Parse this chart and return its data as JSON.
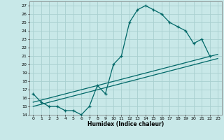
{
  "xlabel": "Humidex (Indice chaleur)",
  "bg_color": "#c8e8e8",
  "grid_color": "#a8d0d0",
  "line_color": "#006868",
  "xlim": [
    -0.5,
    23.5
  ],
  "ylim": [
    14,
    27.5
  ],
  "xticks": [
    0,
    1,
    2,
    3,
    4,
    5,
    6,
    7,
    8,
    9,
    10,
    11,
    12,
    13,
    14,
    15,
    16,
    17,
    18,
    19,
    20,
    21,
    22,
    23
  ],
  "yticks": [
    14,
    15,
    16,
    17,
    18,
    19,
    20,
    21,
    22,
    23,
    24,
    25,
    26,
    27
  ],
  "curve_x": [
    0,
    1,
    2,
    3,
    4,
    5,
    6,
    7,
    8,
    9,
    10,
    11,
    12,
    13,
    14,
    15,
    16,
    17,
    18,
    19,
    20,
    21,
    22
  ],
  "curve_y": [
    16.5,
    15.5,
    15.0,
    15.0,
    14.5,
    14.5,
    14.0,
    15.0,
    17.5,
    16.5,
    20.0,
    21.0,
    25.0,
    26.5,
    27.0,
    26.5,
    26.0,
    25.0,
    24.5,
    24.0,
    22.5,
    23.0,
    21.0
  ],
  "line2_x": [
    0,
    23
  ],
  "line2_y": [
    15.5,
    21.2
  ],
  "line3_x": [
    0,
    23
  ],
  "line3_y": [
    15.0,
    20.7
  ]
}
